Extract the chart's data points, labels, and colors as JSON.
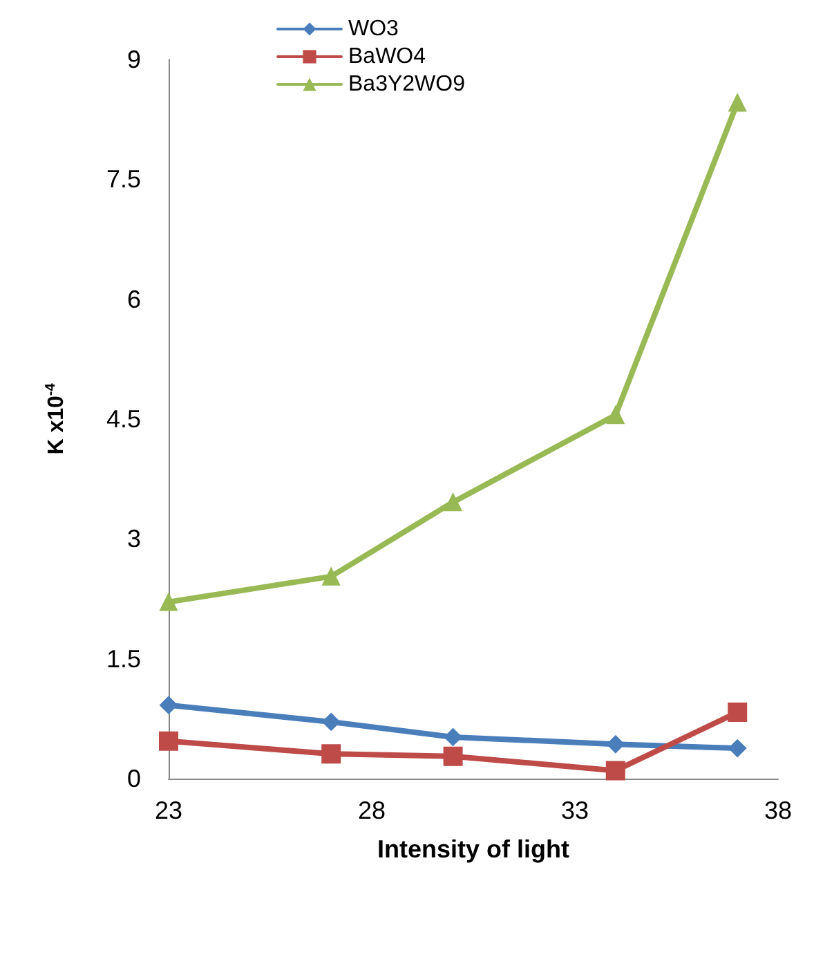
{
  "chart_data": {
    "type": "line",
    "xlabel": "Intensity of light",
    "ylabel": "K x10$^{-4}$",
    "x": [
      23,
      27,
      30,
      34,
      37
    ],
    "series": [
      {
        "name": "WO3",
        "color": "#4a7ebb",
        "marker": "diamond",
        "values": [
          0.92,
          0.71,
          0.52,
          0.43,
          0.38
        ]
      },
      {
        "name": "BaWO4",
        "color": "#be4b48",
        "marker": "square",
        "values": [
          0.47,
          0.31,
          0.28,
          0.1,
          0.83
        ]
      },
      {
        "name": "Ba3Y2WO9",
        "color": "#98b954",
        "marker": "triangle",
        "values": [
          2.21,
          2.53,
          3.46,
          4.55,
          8.46
        ]
      }
    ],
    "xlim": [
      23,
      38
    ],
    "xticks": [
      23,
      28,
      33,
      38
    ],
    "ylim": [
      0,
      9
    ],
    "yticks": [
      0,
      1.5,
      3,
      4.5,
      6,
      7.5,
      9
    ],
    "grid": false,
    "legend": "top",
    "line_style": "solid"
  }
}
